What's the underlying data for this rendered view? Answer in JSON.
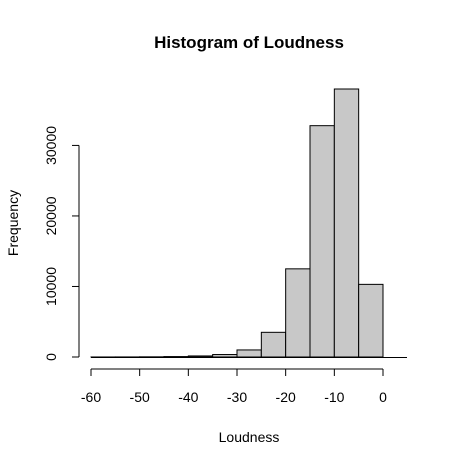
{
  "chart_data": {
    "type": "bar",
    "title": "Histogram of Loudness",
    "xlabel": "Loudness",
    "ylabel": "Frequency",
    "bar_color": "#c8c8c8",
    "edge_color": "#000000",
    "bins": [
      {
        "start": -60,
        "end": -55,
        "count": 5
      },
      {
        "start": -55,
        "end": -50,
        "count": 10
      },
      {
        "start": -50,
        "end": -45,
        "count": 25
      },
      {
        "start": -45,
        "end": -40,
        "count": 60
      },
      {
        "start": -40,
        "end": -35,
        "count": 150
      },
      {
        "start": -35,
        "end": -30,
        "count": 350
      },
      {
        "start": -30,
        "end": -25,
        "count": 1000
      },
      {
        "start": -25,
        "end": -20,
        "count": 3500
      },
      {
        "start": -20,
        "end": -15,
        "count": 12500
      },
      {
        "start": -15,
        "end": -10,
        "count": 32800
      },
      {
        "start": -10,
        "end": -5,
        "count": 38000
      },
      {
        "start": -5,
        "end": 0,
        "count": 10300
      }
    ],
    "xlim": [
      -60,
      0
    ],
    "ylim": [
      0,
      38000
    ],
    "x_ticks": [
      -60,
      -50,
      -40,
      -30,
      -20,
      -10,
      0
    ],
    "y_ticks": [
      0,
      10000,
      20000,
      30000
    ],
    "x_tick_labels": [
      "-60",
      "-50",
      "-40",
      "-30",
      "-20",
      "-10",
      "0"
    ],
    "y_tick_labels": [
      "0",
      "10000",
      "20000",
      "30000"
    ],
    "grid": false,
    "legend": "none"
  }
}
